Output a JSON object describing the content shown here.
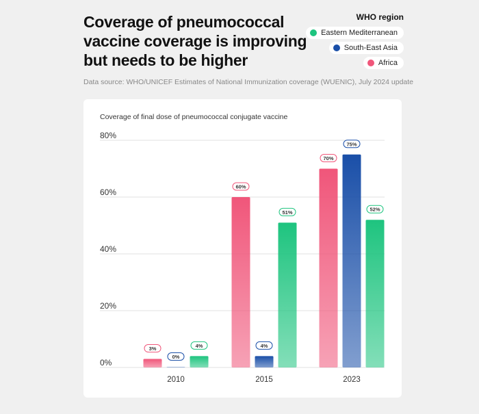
{
  "title": "Coverage of pneumococcal vaccine coverage is improving but needs to be higher",
  "source": "Data source: WHO/UNICEF Estimates of National Immunization coverage (WUENIC), July 2024 update",
  "legend": {
    "title": "WHO region",
    "items": [
      {
        "label": "Eastern Mediterranean",
        "color": "#1ec47f"
      },
      {
        "label": "South-East Asia",
        "color": "#1a4fa8"
      },
      {
        "label": "Africa",
        "color": "#f0567a"
      }
    ]
  },
  "chart_data": {
    "type": "bar",
    "title": "Coverage of final dose of pneumococcal conjugate vaccine",
    "categories": [
      "2010",
      "2015",
      "2023"
    ],
    "yticks": [
      "0%",
      "20%",
      "40%",
      "60%",
      "80%"
    ],
    "ylim": [
      0,
      80
    ],
    "series": [
      {
        "name": "Africa",
        "color": "#f0567a",
        "values": [
          3,
          60,
          70
        ],
        "labels": [
          "3%",
          "60%",
          "70%"
        ]
      },
      {
        "name": "South-East Asia",
        "color": "#1a4fa8",
        "values": [
          0,
          4,
          75
        ],
        "labels": [
          "0%",
          "4%",
          "75%"
        ]
      },
      {
        "name": "Eastern Mediterranean",
        "color": "#1ec47f",
        "values": [
          4,
          51,
          52
        ],
        "labels": [
          "4%",
          "51%",
          "52%"
        ]
      }
    ]
  }
}
